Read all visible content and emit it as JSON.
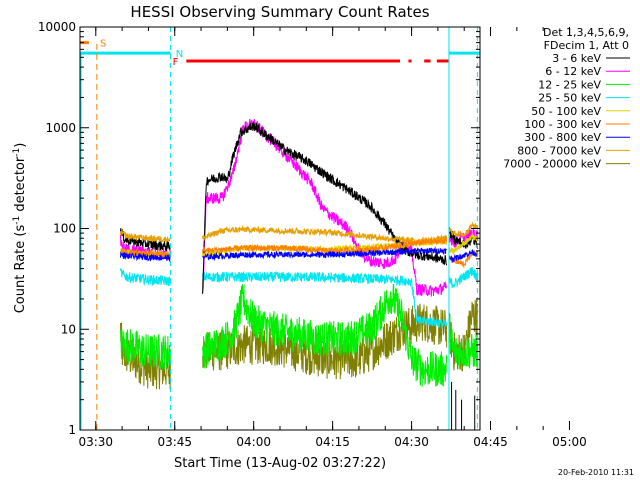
{
  "chart_data": {
    "type": "line",
    "title": "HESSI Observing Summary Count Rates",
    "xlabel": "Start Time (13-Aug-02 03:27:22)",
    "ylabel_main": "Count Rate (s",
    "ylabel_sup1": "-1",
    "ylabel_mid": " detector",
    "ylabel_sup2": "-1",
    "ylabel_end": ")",
    "yscale": "log",
    "ylim": [
      1,
      10000
    ],
    "xlim_minutes": [
      -3,
      73
    ],
    "x_ticks": [
      {
        "m": 0,
        "label": "03:30"
      },
      {
        "m": 15,
        "label": "03:45"
      },
      {
        "m": 30,
        "label": "04:00"
      },
      {
        "m": 45,
        "label": "04:15"
      },
      {
        "m": 60,
        "label": "04:30"
      },
      {
        "m": 75,
        "label": "04:45"
      },
      {
        "m": 90,
        "label": "05:00"
      }
    ],
    "y_ticks": [
      {
        "v": 1,
        "label": "1"
      },
      {
        "v": 10,
        "label": "10"
      },
      {
        "v": 100,
        "label": "100"
      },
      {
        "v": 1000,
        "label": "1000"
      },
      {
        "v": 10000,
        "label": "10000"
      }
    ],
    "legend_header": [
      "Det 1,3,4,5,6,9,",
      "FDecim 1, Att 0"
    ],
    "legend_placement": "right",
    "series": [
      {
        "name": "3 - 6 keV",
        "color": "#000000"
      },
      {
        "name": "6 - 12 keV",
        "color": "#ff00ff"
      },
      {
        "name": "12 - 25 keV",
        "color": "#00ee00"
      },
      {
        "name": "25 - 50 keV",
        "color": "#00e5ee"
      },
      {
        "name": "50 - 100 keV",
        "color": "#e0d000"
      },
      {
        "name": "100 - 300 keV",
        "color": "#ff7f00"
      },
      {
        "name": "300 - 800 keV",
        "color": "#0000ff"
      },
      {
        "name": "800 - 7000 keV",
        "color": "#e8a000"
      },
      {
        "name": "7000 - 20000 keV",
        "color": "#808000"
      }
    ],
    "flag_labels": {
      "saa": "S",
      "night": "N",
      "flare": "F"
    },
    "date_stamp": "20-Feb-2010 11:31"
  }
}
